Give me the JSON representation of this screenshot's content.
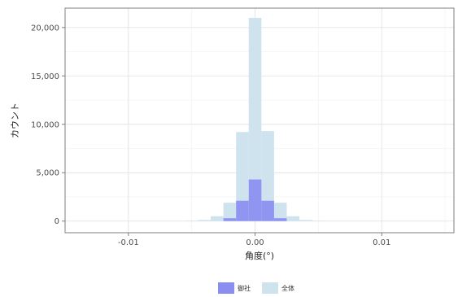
{
  "chart_data": {
    "type": "bar",
    "xlabel": "角度(°)",
    "ylabel": "カウント",
    "xlim": [
      -0.015,
      0.0157
    ],
    "ylim": [
      -1200,
      22000
    ],
    "x_ticks": [
      -0.01,
      0,
      0.01
    ],
    "x_tick_labels": [
      "-0.01",
      "0.00",
      "0.01"
    ],
    "y_ticks": [
      0,
      5000,
      10000,
      15000,
      20000
    ],
    "y_tick_labels": [
      "0",
      "5,000",
      "10,000",
      "15,000",
      "20,000"
    ],
    "grid": true,
    "legend_position": "bottom",
    "bin_width": 0.001,
    "series": [
      {
        "name": "全体",
        "color": "#cfe3ef",
        "bins": [
          {
            "x": -0.005,
            "y": 40
          },
          {
            "x": -0.004,
            "y": 120
          },
          {
            "x": -0.003,
            "y": 500
          },
          {
            "x": -0.002,
            "y": 1900
          },
          {
            "x": -0.001,
            "y": 9200
          },
          {
            "x": 0.0,
            "y": 21000
          },
          {
            "x": 0.001,
            "y": 9300
          },
          {
            "x": 0.002,
            "y": 1900
          },
          {
            "x": 0.003,
            "y": 500
          },
          {
            "x": 0.004,
            "y": 120
          },
          {
            "x": 0.005,
            "y": 40
          }
        ]
      },
      {
        "name": "御社",
        "color": "#8a8ef0",
        "bins": [
          {
            "x": -0.002,
            "y": 300
          },
          {
            "x": -0.001,
            "y": 2100
          },
          {
            "x": 0.0,
            "y": 4300
          },
          {
            "x": 0.001,
            "y": 2100
          },
          {
            "x": 0.002,
            "y": 300
          }
        ]
      }
    ]
  }
}
